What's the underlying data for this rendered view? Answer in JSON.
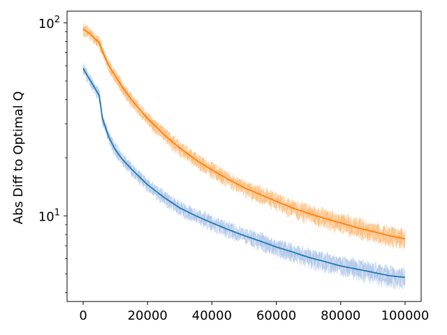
{
  "chart_data": {
    "type": "line",
    "title": "",
    "xlabel": "",
    "ylabel": "Abs Diff to Optimal Q",
    "yscale": "log",
    "xlim": [
      -5000,
      105000
    ],
    "ylim": [
      3.6,
      115
    ],
    "x_ticks": [
      {
        "value": 0,
        "label": "0"
      },
      {
        "value": 20000,
        "label": "20000"
      },
      {
        "value": 40000,
        "label": "40000"
      },
      {
        "value": 60000,
        "label": "60000"
      },
      {
        "value": 80000,
        "label": "80000"
      },
      {
        "value": 100000,
        "label": "100000"
      }
    ],
    "y_ticks": [
      {
        "value": 10,
        "base": "10",
        "exp": "1"
      },
      {
        "value": 100,
        "base": "10",
        "exp": "2"
      }
    ],
    "grid": false,
    "legend": "none",
    "series": [
      {
        "color": "#ff7f0e",
        "band_color": "#ffbb78",
        "x": [
          0,
          2000,
          5000,
          6000,
          8000,
          10000,
          12000,
          15000,
          20000,
          25000,
          30000,
          35000,
          40000,
          45000,
          50000,
          55000,
          60000,
          65000,
          70000,
          75000,
          80000,
          85000,
          90000,
          95000,
          100000
        ],
        "values": [
          93,
          88,
          79,
          71,
          60,
          53,
          47,
          40,
          32,
          26.5,
          22.5,
          19.5,
          17.3,
          15.5,
          14.0,
          12.9,
          11.9,
          11.0,
          10.3,
          9.7,
          9.2,
          8.7,
          8.3,
          7.9,
          7.6
        ]
      },
      {
        "color": "#1f77b4",
        "band_color": "#aec7e8",
        "x": [
          0,
          2000,
          5000,
          6000,
          8000,
          10000,
          12000,
          15000,
          20000,
          25000,
          30000,
          35000,
          40000,
          45000,
          50000,
          55000,
          60000,
          65000,
          70000,
          75000,
          80000,
          85000,
          90000,
          95000,
          100000
        ],
        "values": [
          58,
          51,
          42,
          32,
          25.5,
          22,
          19.8,
          17.5,
          14.5,
          12.5,
          11.0,
          10.0,
          9.2,
          8.5,
          7.9,
          7.4,
          6.9,
          6.5,
          6.1,
          5.8,
          5.5,
          5.3,
          5.1,
          4.9,
          4.8
        ]
      }
    ]
  }
}
